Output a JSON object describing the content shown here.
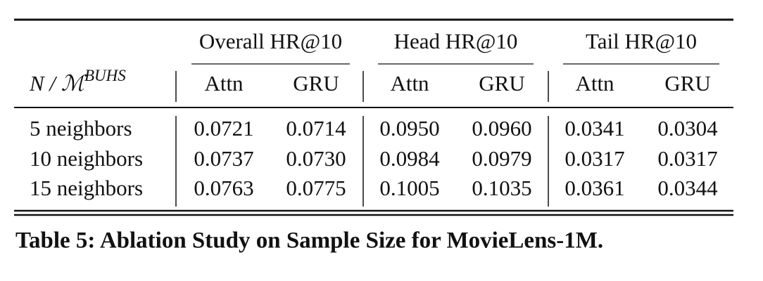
{
  "table": {
    "corner": {
      "base": "N / ℳ",
      "sup": "BUHS"
    },
    "groups": [
      "Overall HR@10",
      "Head HR@10",
      "Tail HR@10"
    ],
    "subheaders": [
      "Attn",
      "GRU",
      "Attn",
      "GRU",
      "Attn",
      "GRU"
    ],
    "rows": [
      {
        "label": "5 neighbors",
        "values": [
          "0.0721",
          "0.0714",
          "0.0950",
          "0.0960",
          "0.0341",
          "0.0304"
        ]
      },
      {
        "label": "10 neighbors",
        "values": [
          "0.0737",
          "0.0730",
          "0.0984",
          "0.0979",
          "0.0317",
          "0.0317"
        ]
      },
      {
        "label": "15 neighbors",
        "values": [
          "0.0763",
          "0.0775",
          "0.1005",
          "0.1035",
          "0.0361",
          "0.0344"
        ]
      }
    ]
  },
  "caption": "Table 5: Ablation Study on Sample Size for MovieLens-1M."
}
